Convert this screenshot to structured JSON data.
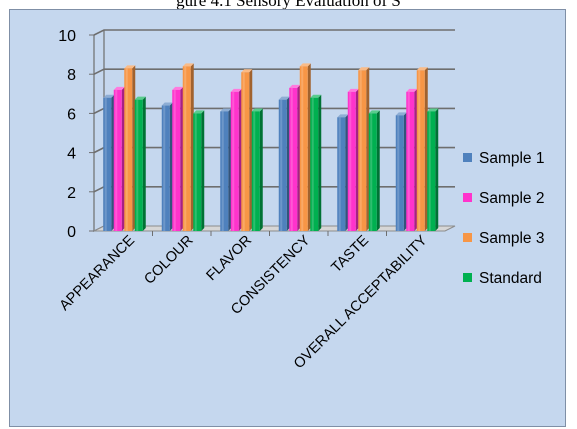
{
  "chart_data": {
    "type": "bar",
    "title": "gure 4.1 Sensory Evaluation of S",
    "categories": [
      "APPEARANCE",
      "COLOUR",
      "FLAVOR",
      "CONSISTENCY",
      "TASTE",
      "OVERALL ACCEPTABILITY"
    ],
    "series": [
      {
        "name": "Sample 1",
        "color": "#4f81bd",
        "values": [
          6.8,
          6.4,
          6.1,
          6.7,
          5.8,
          5.9
        ]
      },
      {
        "name": "Sample 2",
        "color": "#ff33cc",
        "values": [
          7.2,
          7.2,
          7.1,
          7.3,
          7.1,
          7.1
        ]
      },
      {
        "name": "Sample 3",
        "color": "#f79646",
        "values": [
          8.3,
          8.4,
          8.1,
          8.4,
          8.2,
          8.2
        ]
      },
      {
        "name": "Standard",
        "color": "#00b050",
        "values": [
          6.7,
          6.0,
          6.1,
          6.8,
          6.0,
          6.1
        ]
      }
    ],
    "yticks": [
      0,
      2,
      4,
      6,
      8,
      10
    ],
    "ylim": [
      0,
      10
    ],
    "xlabel": "",
    "ylabel": "",
    "grid": true,
    "legend_position": "right",
    "background_color": "#c5d7ee"
  }
}
